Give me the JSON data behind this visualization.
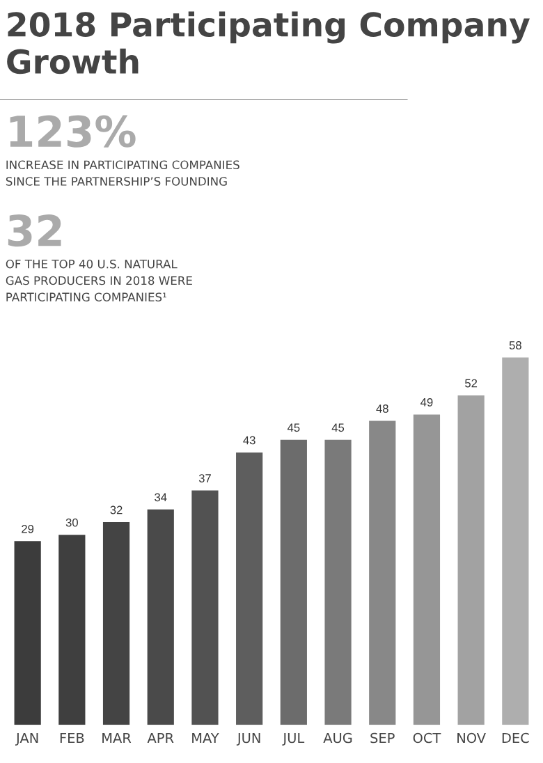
{
  "chart_data": {
    "type": "bar",
    "title": "2018 Participating Company Growth",
    "annotations": [
      "123%",
      "INCREASE IN PARTICIPATING COMPANIES\nSINCE THE PARTNERSHIP’S FOUNDING",
      "32",
      "OF THE TOP 40 U.S. NATURAL\nGAS PRODUCERS IN 2018 WERE\nPARTICIPATING COMPANIES¹"
    ],
    "categories": [
      "JAN",
      "FEB",
      "MAR",
      "APR",
      "MAY",
      "JUN",
      "JUL",
      "AUG",
      "SEP",
      "OCT",
      "NOV",
      "DEC"
    ],
    "values": [
      29,
      30,
      32,
      34,
      37,
      43,
      45,
      45,
      48,
      49,
      52,
      58
    ],
    "colors": [
      "#3c3c3c",
      "#3f3f3f",
      "#444444",
      "#4a4a4a",
      "#525252",
      "#5e5e5e",
      "#6c6c6c",
      "#7a7a7a",
      "#888888",
      "#969696",
      "#a2a2a2",
      "#aeaeae"
    ],
    "data_labels": true,
    "grid": false,
    "legend": false
  }
}
